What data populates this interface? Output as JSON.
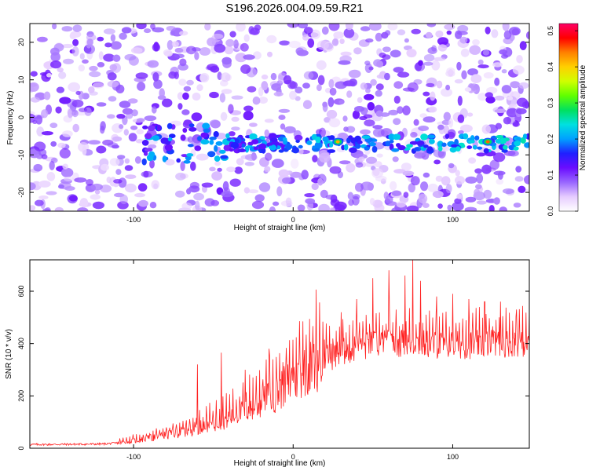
{
  "page": {
    "title": "S196.2026.004.09.59.R21"
  },
  "chart_data": [
    {
      "type": "heatmap",
      "title": "S196.2026.004.09.59.R21",
      "xlabel": "Height of straight line (km)",
      "ylabel": "Frequency (Hz)",
      "xlim": [
        -165,
        148
      ],
      "ylim": [
        -25,
        25
      ],
      "x_ticks": [
        -100,
        0,
        100
      ],
      "y_ticks": [
        -20,
        -10,
        0,
        10,
        20
      ],
      "x_tick_labels": [
        "-100",
        "0",
        "100"
      ],
      "y_tick_labels": [
        "-20",
        "-10",
        "0",
        "10",
        "20"
      ],
      "colorbar": {
        "label": "Normalized spectral amplitude",
        "range": [
          0,
          0.52
        ],
        "ticks": [
          0,
          0.1,
          0.2,
          0.3,
          0.4,
          0.5
        ],
        "tick_labels": [
          "0.0",
          "0.1",
          "0.2",
          "0.3",
          "0.4",
          "0.5"
        ],
        "colors": [
          "#ffffff",
          "#e6ccff",
          "#9966ff",
          "#6a0dff",
          "#2020ff",
          "#00a0ff",
          "#00e0e0",
          "#00e060",
          "#60ff00",
          "#d0ff00",
          "#ffd000",
          "#ff8000",
          "#ff0000",
          "#ff0066"
        ]
      },
      "signal_band": {
        "frequency_center": -7,
        "x_start": -95,
        "x_end": 148,
        "peak_x": [
          28,
          122
        ],
        "peak_amplitude": [
          0.42,
          0.45
        ]
      },
      "background_amplitude": 0.08
    },
    {
      "type": "line",
      "xlabel": "Height of straight line (km)",
      "ylabel": "SNR (10 * v/v)",
      "xlim": [
        -165,
        148
      ],
      "ylim": [
        0,
        720
      ],
      "x_ticks": [
        -100,
        0,
        100
      ],
      "y_ticks": [
        0,
        200,
        400,
        600
      ],
      "x_tick_labels": [
        "-100",
        "0",
        "100"
      ],
      "y_tick_labels": [
        "0",
        "200",
        "400",
        "600"
      ],
      "color": "#ff2020",
      "trend": {
        "x": [
          -165,
          -140,
          -120,
          -110,
          -100,
          -90,
          -80,
          -70,
          -60,
          -50,
          -40,
          -30,
          -20,
          -10,
          0,
          10,
          20,
          30,
          40,
          50,
          60,
          70,
          80,
          90,
          100,
          110,
          120,
          130,
          140,
          148
        ],
        "y": [
          14,
          15,
          16,
          20,
          28,
          38,
          50,
          62,
          78,
          95,
          115,
          140,
          175,
          210,
          265,
          310,
          340,
          365,
          385,
          395,
          400,
          400,
          400,
          395,
          395,
          395,
          400,
          400,
          405,
          400
        ]
      },
      "spike_peak_x": [
        -60,
        -45,
        -30,
        -15,
        30,
        40,
        50,
        60,
        70,
        75,
        80,
        90,
        100,
        110,
        120,
        130,
        140
      ],
      "spike_peak_y": [
        320,
        365,
        300,
        380,
        520,
        570,
        650,
        680,
        660,
        728,
        640,
        580,
        590,
        570,
        560,
        560,
        530
      ]
    }
  ]
}
